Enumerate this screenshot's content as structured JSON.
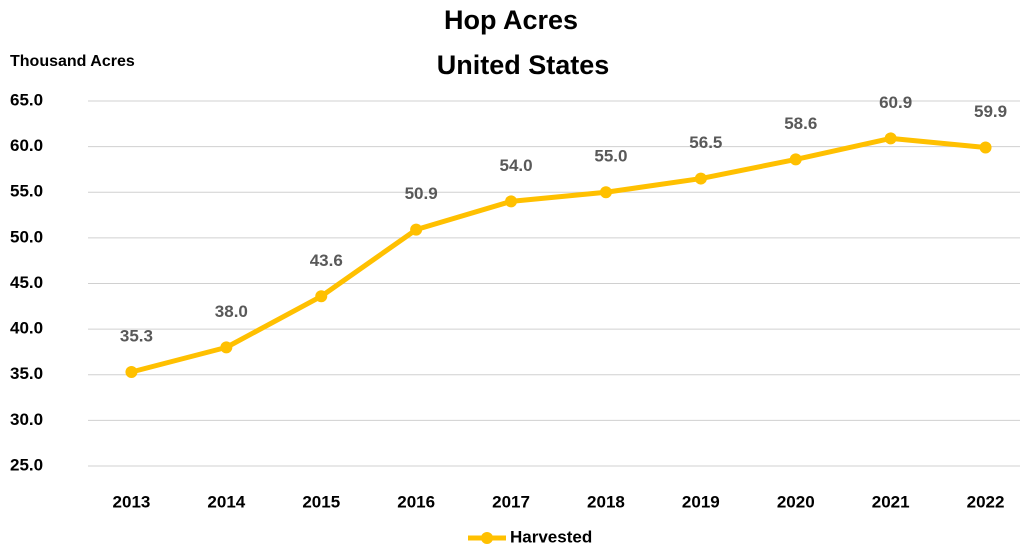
{
  "chart_data": {
    "type": "line",
    "title": "Hop Acres",
    "subtitle": "United States",
    "y_label": "Thousand Acres",
    "categories": [
      "2013",
      "2014",
      "2015",
      "2016",
      "2017",
      "2018",
      "2019",
      "2020",
      "2021",
      "2022"
    ],
    "series": [
      {
        "name": "Harvested",
        "color": "#FFC000",
        "values": [
          35.3,
          38.0,
          43.6,
          50.9,
          54.0,
          55.0,
          56.5,
          58.6,
          60.9,
          59.9
        ],
        "value_labels": [
          "35.3",
          "38.0",
          "43.6",
          "50.9",
          "54.0",
          "55.0",
          "56.5",
          "58.6",
          "60.9",
          "59.9"
        ]
      }
    ],
    "ylim": [
      25,
      65
    ],
    "yticks": [
      {
        "value": 25,
        "label": "25.0"
      },
      {
        "value": 30,
        "label": "30.0"
      },
      {
        "value": 35,
        "label": "35.0"
      },
      {
        "value": 40,
        "label": "40.0"
      },
      {
        "value": 45,
        "label": "45.0"
      },
      {
        "value": 50,
        "label": "50.0"
      },
      {
        "value": 55,
        "label": "55.0"
      },
      {
        "value": 60,
        "label": "60.0"
      },
      {
        "value": 65,
        "label": "65.0"
      }
    ],
    "grid": true,
    "legend": "bottom"
  }
}
